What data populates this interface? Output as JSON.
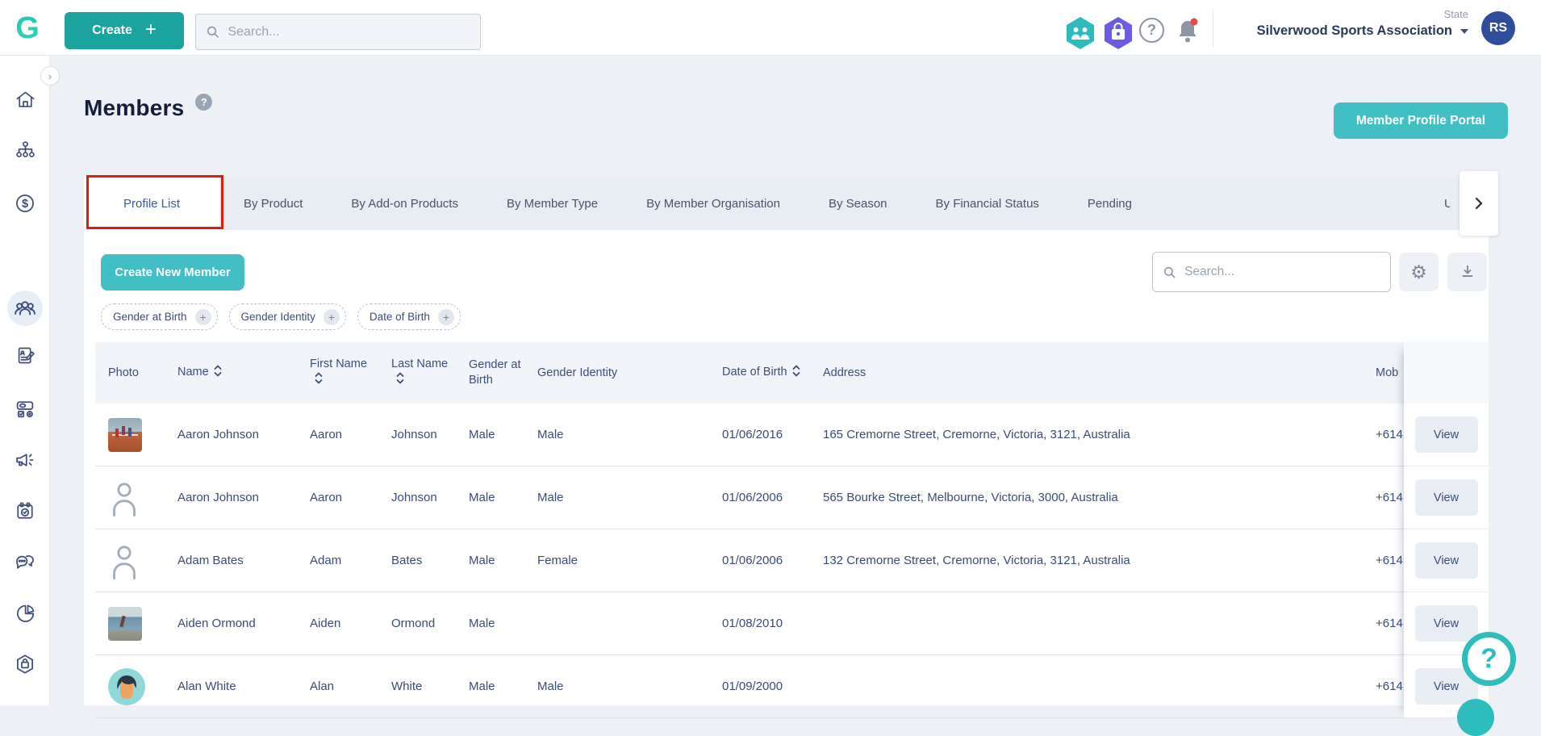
{
  "colors": {
    "brand_teal": "#1ba49e",
    "action_teal": "#41bfc5",
    "active_tab_blue": "#3c55ae",
    "navy_text": "#3a4b77",
    "annotation_red": "#df1d0f",
    "avatar_navy": "#2e4d9b",
    "hex_teal": "#2dbcbe",
    "hex_purple": "#6a5be2",
    "notification_red": "#e5484d"
  },
  "icons": {
    "plus": "+",
    "help_glyph": "?",
    "gear": "⚙",
    "collapse_chevron": "›"
  },
  "topbar": {
    "create_label": "Create",
    "search_placeholder": "Search...",
    "state_label": "State",
    "organisation": "Silverwood Sports Association",
    "avatar_initials": "RS"
  },
  "page": {
    "title": "Members",
    "title_help_badge": "?",
    "portal_button_label": "Member Profile Portal"
  },
  "tabs": {
    "items": [
      "Profile List",
      "By Product",
      "By Add-on Products",
      "By Member Type",
      "By Member Organisation",
      "By Season",
      "By Financial Status",
      "Pending"
    ],
    "active_index": 0,
    "overflow_fragment": "U"
  },
  "toolbar": {
    "create_member_label": "Create New Member",
    "search_placeholder": "Search...",
    "filters": [
      "Gender at Birth",
      "Gender Identity",
      "Date of Birth"
    ]
  },
  "table": {
    "columns": [
      {
        "label": "Photo",
        "sortable": false
      },
      {
        "label": "Name",
        "sortable": true
      },
      {
        "label": "First Name",
        "sortable": true
      },
      {
        "label": "Last Name",
        "sortable": true
      },
      {
        "label": "Gender at Birth",
        "sortable": false
      },
      {
        "label": "Gender Identity",
        "sortable": false
      },
      {
        "label": "Date of Birth",
        "sortable": true
      },
      {
        "label": "Address",
        "sortable": false
      },
      {
        "label": "Mob",
        "sortable": false
      }
    ],
    "action_label": "View",
    "rows": [
      {
        "photo": "track",
        "name": "Aaron Johnson",
        "first_name": "Aaron",
        "last_name": "Johnson",
        "gender_at_birth": "Male",
        "gender_identity": "Male",
        "date_of_birth": "01/06/2016",
        "address": "165 Cremorne Street, Cremorne, Victoria, 3121, Australia",
        "mobile": "+614"
      },
      {
        "photo": "placeholder",
        "name": "Aaron Johnson",
        "first_name": "Aaron",
        "last_name": "Johnson",
        "gender_at_birth": "Male",
        "gender_identity": "Male",
        "date_of_birth": "01/06/2006",
        "address": "565 Bourke Street, Melbourne, Victoria, 3000, Australia",
        "mobile": "+614"
      },
      {
        "photo": "placeholder",
        "name": "Adam Bates",
        "first_name": "Adam",
        "last_name": "Bates",
        "gender_at_birth": "Male",
        "gender_identity": "Female",
        "date_of_birth": "01/06/2006",
        "address": "132 Cremorne Street, Cremorne, Victoria, 3121, Australia",
        "mobile": "+614"
      },
      {
        "photo": "runner",
        "name": "Aiden Ormond",
        "first_name": "Aiden",
        "last_name": "Ormond",
        "gender_at_birth": "Male",
        "gender_identity": "",
        "date_of_birth": "01/08/2010",
        "address": "",
        "mobile": "+614"
      },
      {
        "photo": "cartoon",
        "name": "Alan White",
        "first_name": "Alan",
        "last_name": "White",
        "gender_at_birth": "Male",
        "gender_identity": "Male",
        "date_of_birth": "01/09/2000",
        "address": "",
        "mobile": "+614"
      }
    ]
  },
  "help_widget": {
    "label": "?"
  }
}
